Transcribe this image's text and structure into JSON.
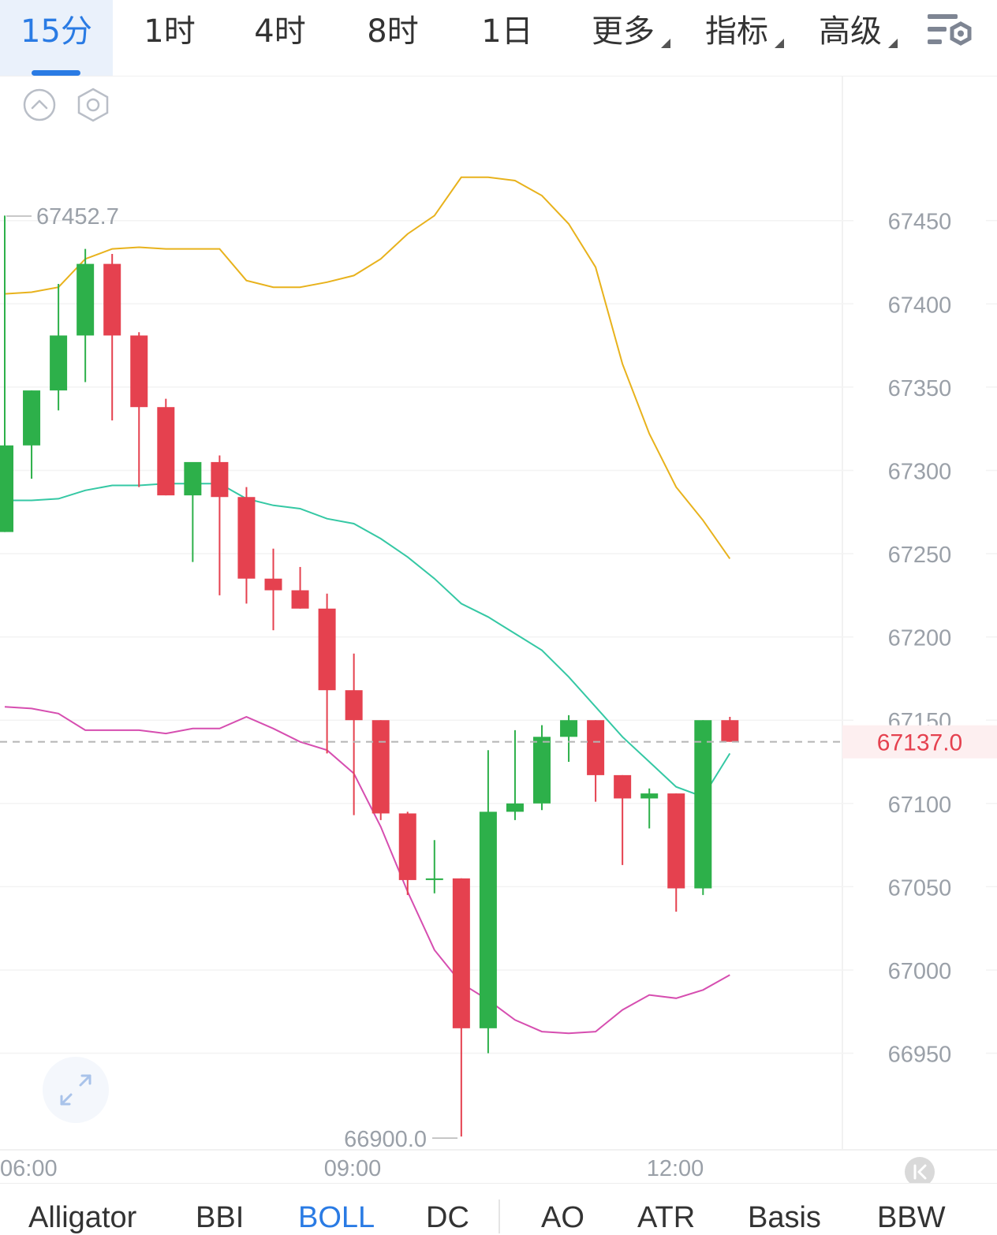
{
  "timeframes": {
    "items": [
      {
        "label": "15分",
        "active": true
      },
      {
        "label": "1时"
      },
      {
        "label": "4时"
      },
      {
        "label": "8时"
      },
      {
        "label": "1日"
      }
    ],
    "more_label": "更多",
    "indicators_label": "指标",
    "advanced_label": "高级",
    "settings_icon": "chart-settings-icon"
  },
  "chart_controls": {
    "collapse_icon": "chevron-up-circle-icon",
    "settings_icon": "hexagon-settings-icon",
    "expand_icon": "expand-arrows-icon",
    "scroll_latest_icon": "jump-to-latest-icon"
  },
  "colors": {
    "up": "#2db04a",
    "down": "#e5414f",
    "boll_upper": "#e8b21c",
    "boll_mid": "#35c8a4",
    "boll_lower": "#d64eb0",
    "active": "#2a7be4",
    "price_tag": "#e5414f"
  },
  "chart_data": {
    "type": "candlestick",
    "x_ticks": [
      "06:00",
      "09:00",
      "12:00"
    ],
    "y_ticks": [
      67450,
      67400,
      67350,
      67300,
      67250,
      67200,
      67150,
      67100,
      67050,
      67000,
      66950
    ],
    "ylim": [
      66892,
      67537
    ],
    "high_label": "67452.7",
    "low_label": "66900.0",
    "last_price": "67137.0",
    "candles": [
      {
        "o": 67263,
        "h": 67453,
        "l": 67263,
        "c": 67315
      },
      {
        "o": 67315,
        "h": 67348,
        "l": 67295,
        "c": 67348
      },
      {
        "o": 67348,
        "h": 67412,
        "l": 67336,
        "c": 67381
      },
      {
        "o": 67381,
        "h": 67433,
        "l": 67353,
        "c": 67424
      },
      {
        "o": 67424,
        "h": 67430,
        "l": 67330,
        "c": 67381
      },
      {
        "o": 67381,
        "h": 67383,
        "l": 67290,
        "c": 67338
      },
      {
        "o": 67338,
        "h": 67343,
        "l": 67285,
        "c": 67285
      },
      {
        "o": 67285,
        "h": 67303,
        "l": 67245,
        "c": 67305
      },
      {
        "o": 67305,
        "h": 67309,
        "l": 67225,
        "c": 67284
      },
      {
        "o": 67284,
        "h": 67290,
        "l": 67220,
        "c": 67235
      },
      {
        "o": 67235,
        "h": 67253,
        "l": 67204,
        "c": 67228
      },
      {
        "o": 67228,
        "h": 67242,
        "l": 67217,
        "c": 67217
      },
      {
        "o": 67217,
        "h": 67226,
        "l": 67130,
        "c": 67168
      },
      {
        "o": 67168,
        "h": 67190,
        "l": 67093,
        "c": 67150
      },
      {
        "o": 67150,
        "h": 67150,
        "l": 67090,
        "c": 67094
      },
      {
        "o": 67094,
        "h": 67095,
        "l": 67045,
        "c": 67054
      },
      {
        "o": 67054,
        "h": 67078,
        "l": 67046,
        "c": 67055
      },
      {
        "o": 67055,
        "h": 67055,
        "l": 66900,
        "c": 66965
      },
      {
        "o": 66965,
        "h": 67132,
        "l": 66950,
        "c": 67095
      },
      {
        "o": 67095,
        "h": 67144,
        "l": 67090,
        "c": 67100
      },
      {
        "o": 67100,
        "h": 67147,
        "l": 67096,
        "c": 67140
      },
      {
        "o": 67140,
        "h": 67153,
        "l": 67125,
        "c": 67150
      },
      {
        "o": 67150,
        "h": 67150,
        "l": 67101,
        "c": 67117
      },
      {
        "o": 67117,
        "h": 67117,
        "l": 67063,
        "c": 67103
      },
      {
        "o": 67103,
        "h": 67109,
        "l": 67085,
        "c": 67106
      },
      {
        "o": 67106,
        "h": 67106,
        "l": 67035,
        "c": 67049
      },
      {
        "o": 67049,
        "h": 67150,
        "l": 67045,
        "c": 67150
      },
      {
        "o": 67150,
        "h": 67152,
        "l": 67137,
        "c": 67137
      }
    ],
    "boll_upper": [
      67406,
      67407,
      67410,
      67427,
      67433,
      67434,
      67433,
      67433,
      67433,
      67414,
      67410,
      67410,
      67413,
      67417,
      67427,
      67442,
      67453,
      67476,
      67476,
      67474,
      67465,
      67448,
      67422,
      67364,
      67322,
      67290,
      67270,
      67247
    ],
    "boll_mid": [
      67282,
      67282,
      67283,
      67288,
      67291,
      67291,
      67292,
      67292,
      67292,
      67283,
      67279,
      67277,
      67271,
      67268,
      67259,
      67248,
      67235,
      67220,
      67212,
      67202,
      67192,
      67176,
      67158,
      67140,
      67125,
      67110,
      67104,
      67130
    ],
    "boll_lower": [
      67158,
      67157,
      67154,
      67144,
      67144,
      67144,
      67142,
      67145,
      67145,
      67152,
      67145,
      67137,
      67132,
      67118,
      67086,
      67047,
      67012,
      66992,
      66982,
      66970,
      66963,
      66962,
      66963,
      66976,
      66985,
      66983,
      66988,
      66997
    ]
  },
  "bottom_tabs": {
    "items": [
      {
        "label": "Alligator"
      },
      {
        "label": "BBI"
      },
      {
        "label": "BOLL",
        "active": true
      },
      {
        "label": "DC"
      },
      {
        "label": "AO"
      },
      {
        "label": "ATR"
      },
      {
        "label": "Basis"
      },
      {
        "label": "BBW"
      }
    ]
  }
}
